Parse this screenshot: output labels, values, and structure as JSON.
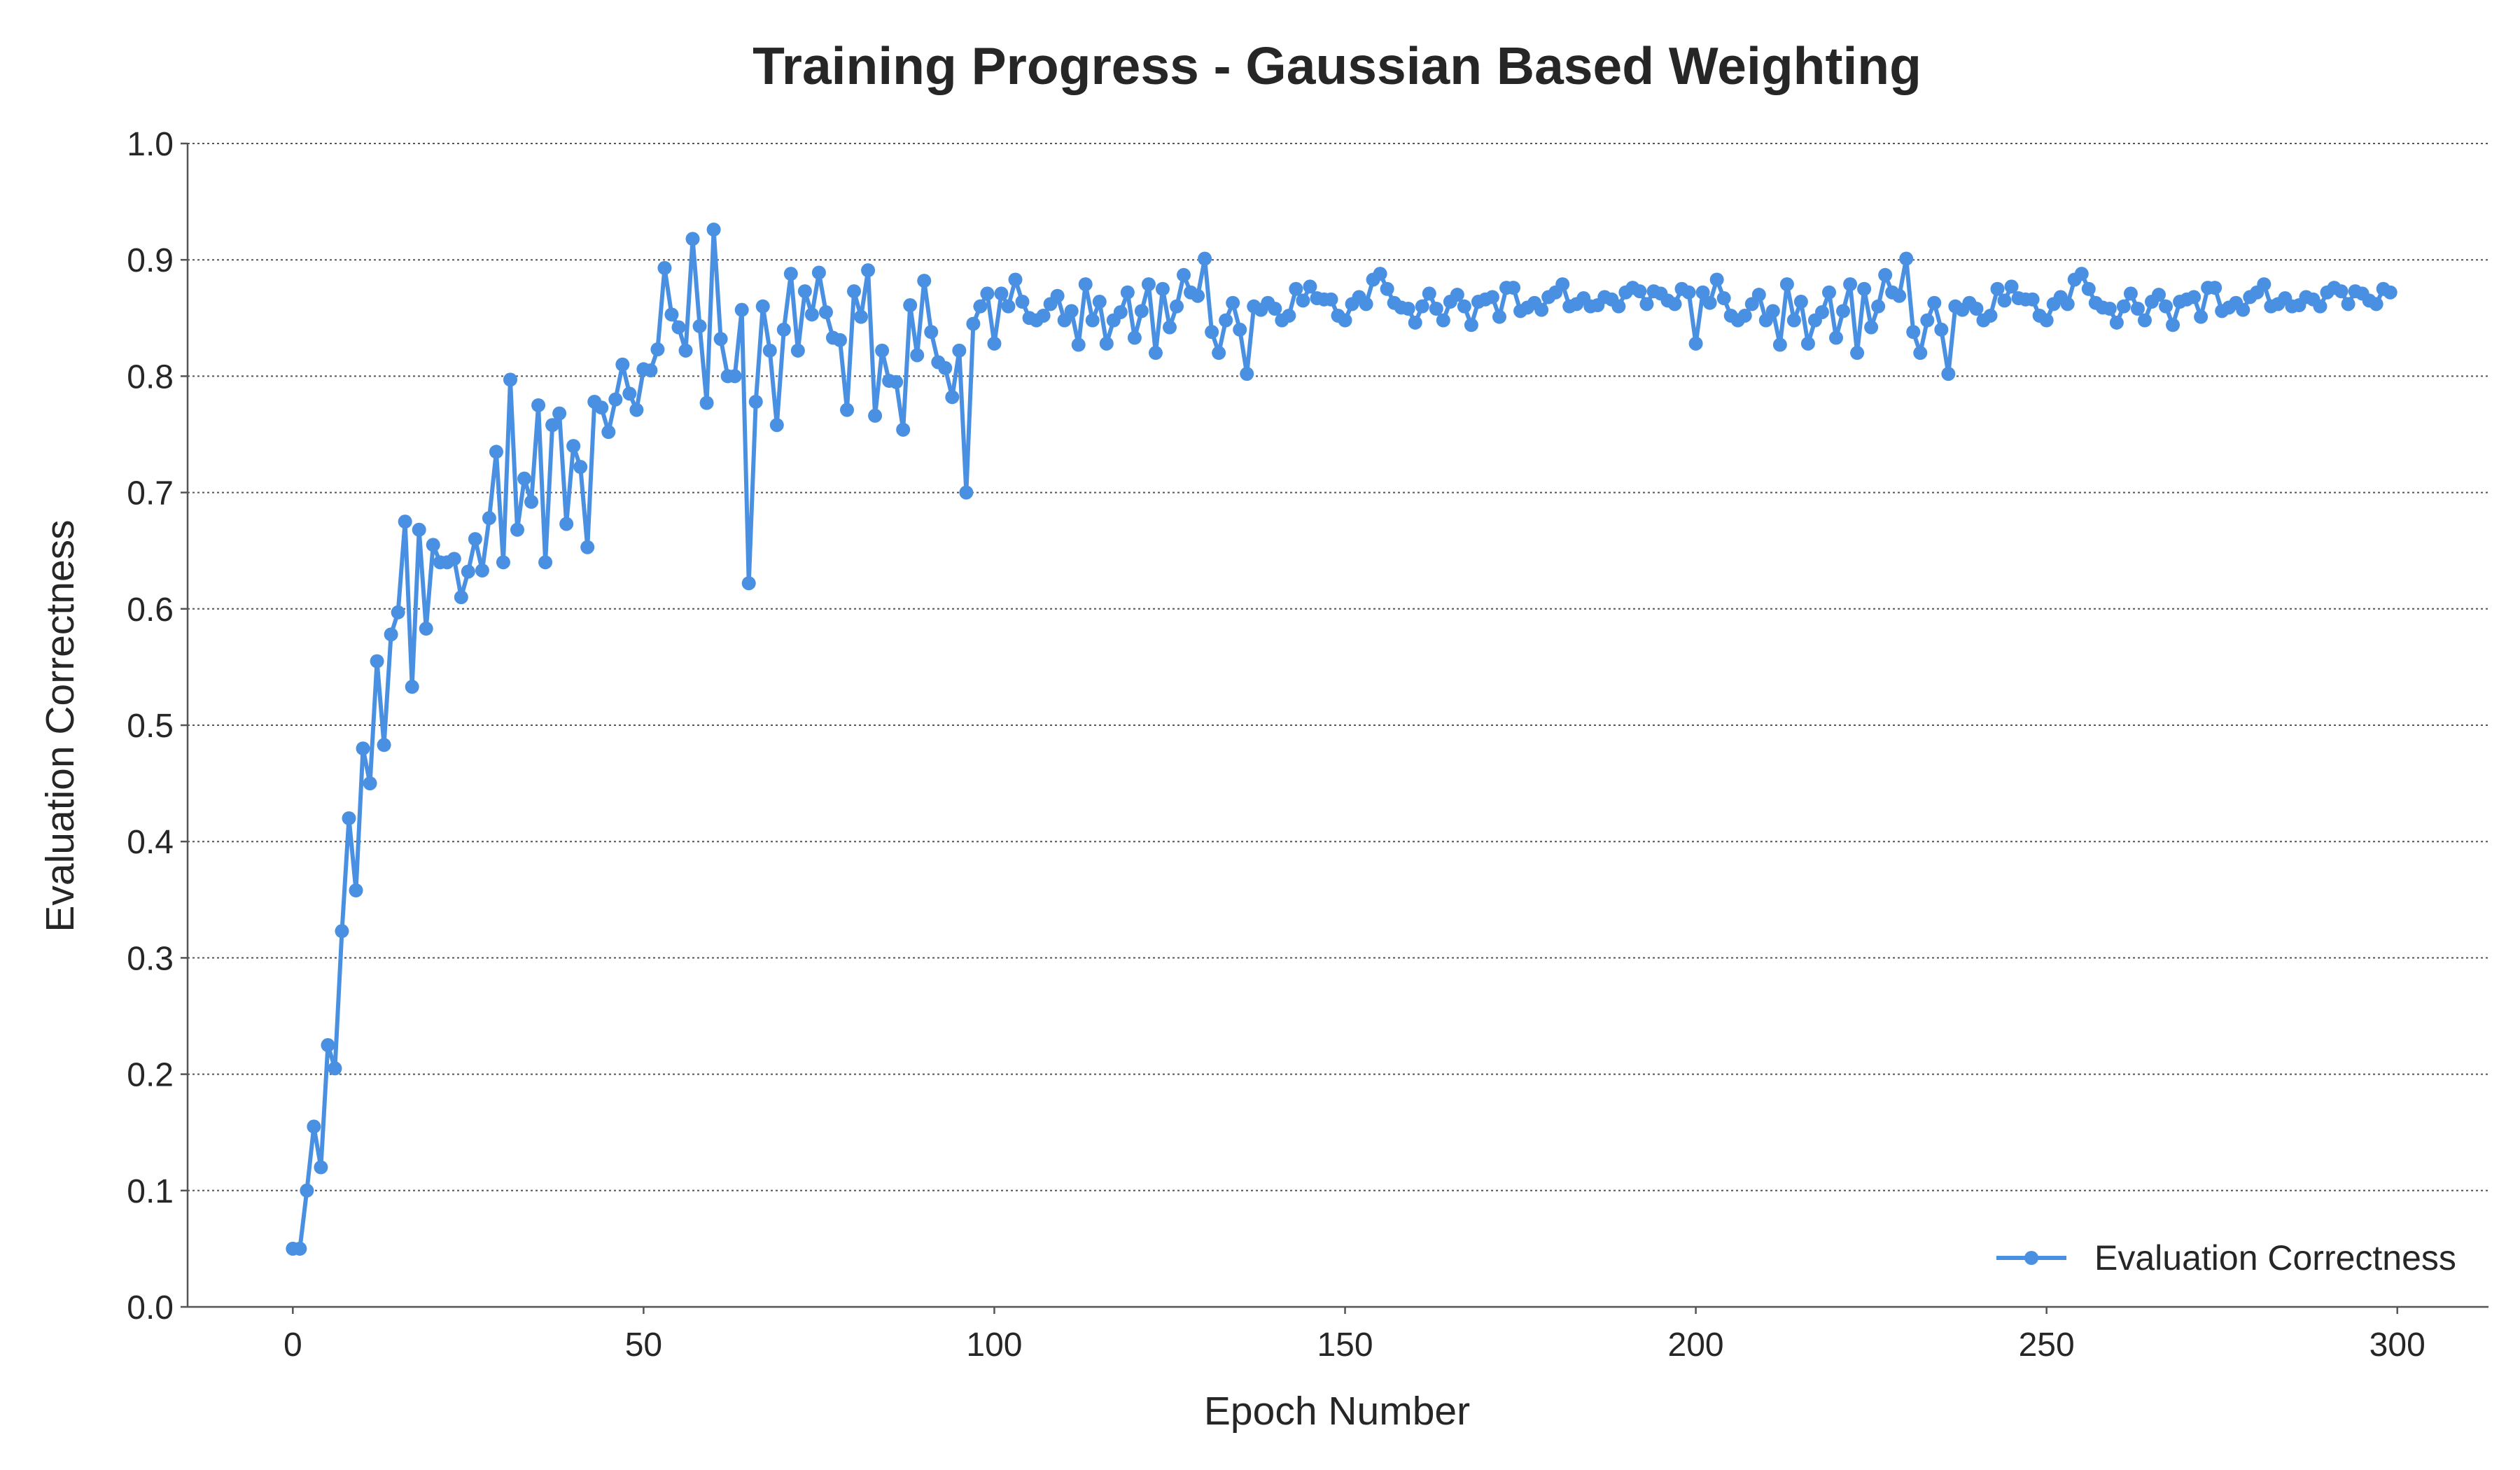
{
  "chart_data": {
    "type": "line",
    "title": "Training Progress - Gaussian Based Weighting",
    "xlabel": "Epoch Number",
    "ylabel": "Evaluation Correctness",
    "xlim": [
      -15,
      313
    ],
    "ylim": [
      0,
      1.0
    ],
    "xticks": [
      0,
      50,
      100,
      150,
      200,
      250,
      300
    ],
    "yticks": [
      0.0,
      0.1,
      0.2,
      0.3,
      0.4,
      0.5,
      0.6,
      0.7,
      0.8,
      0.9,
      1.0
    ],
    "xtick_labels": [
      "0",
      "50",
      "100",
      "150",
      "200",
      "250",
      "300"
    ],
    "ytick_labels": [
      "0.0",
      "0.1",
      "0.2",
      "0.3",
      "0.4",
      "0.5",
      "0.6",
      "0.7",
      "0.8",
      "0.9",
      "1.0"
    ],
    "grid": "horizontal-dotted",
    "legend_position": "lower-right",
    "series": [
      {
        "name": "Evaluation Correctness",
        "color": "#4a90e2",
        "marker": "circle",
        "x": [
          0,
          1,
          2,
          3,
          4,
          5,
          6,
          7,
          8,
          9,
          10,
          11,
          12,
          13,
          14,
          15,
          16,
          17,
          18,
          19,
          20,
          21,
          22,
          23,
          24,
          25,
          26,
          27,
          28,
          29,
          30,
          31,
          32,
          33,
          34,
          35,
          36,
          37,
          38,
          39,
          40,
          41,
          42,
          43,
          44,
          45,
          46,
          47,
          48,
          49,
          50,
          51,
          52,
          53,
          54,
          55,
          56,
          57,
          58,
          59,
          60,
          61,
          62,
          63,
          64,
          65,
          66,
          67,
          68,
          69,
          70,
          71,
          72,
          73,
          74,
          75,
          76,
          77,
          78,
          79,
          80,
          81,
          82,
          83,
          84,
          85,
          86,
          87,
          88,
          89,
          90,
          91,
          92,
          93,
          94,
          95,
          96,
          97,
          98,
          99,
          100,
          101,
          102,
          103,
          104,
          105,
          106,
          107,
          108,
          109,
          110,
          111,
          112,
          113,
          114,
          115,
          116,
          117,
          118,
          119,
          120,
          121,
          122,
          123,
          124,
          125,
          126,
          127,
          128,
          129,
          130,
          131,
          132,
          133,
          134,
          135,
          136,
          137,
          138,
          139,
          140,
          141,
          142,
          143,
          144,
          145,
          146,
          147,
          148,
          149,
          150,
          151,
          152,
          153,
          154,
          155,
          156,
          157,
          158,
          159,
          160,
          161,
          162,
          163,
          164,
          165,
          166,
          167,
          168,
          169,
          170,
          171,
          172,
          173,
          174,
          175,
          176,
          177,
          178,
          179,
          180,
          181,
          182,
          183,
          184,
          185,
          186,
          187,
          188,
          189,
          190,
          191,
          192,
          193,
          194,
          195,
          196,
          197,
          198,
          199,
          200,
          201,
          202,
          203,
          204,
          205,
          206,
          207,
          208,
          209,
          210,
          211,
          212,
          213,
          214,
          215,
          216,
          217,
          218,
          219,
          220,
          221,
          222,
          223,
          224,
          225,
          226,
          227,
          228,
          229,
          230,
          231,
          232,
          233,
          234,
          235,
          236,
          237,
          238,
          239,
          240,
          241,
          242,
          243,
          244,
          245,
          246,
          247,
          248,
          249,
          250,
          251,
          252,
          253,
          254,
          255,
          256,
          257,
          258,
          259,
          260,
          261,
          262,
          263,
          264,
          265,
          266,
          267,
          268,
          269,
          270,
          271,
          272,
          273,
          274,
          275,
          276,
          277,
          278,
          279,
          280,
          281,
          282,
          283,
          284,
          285,
          286,
          287,
          288,
          289,
          290,
          291,
          292,
          293,
          294,
          295,
          296,
          297,
          298,
          299
        ],
        "y": [
          0.05,
          0.05,
          0.1,
          0.155,
          0.12,
          0.225,
          0.205,
          0.323,
          0.42,
          0.358,
          0.48,
          0.45,
          0.555,
          0.483,
          0.578,
          0.597,
          0.675,
          0.533,
          0.668,
          0.583,
          0.655,
          0.64,
          0.64,
          0.643,
          0.61,
          0.632,
          0.66,
          0.633,
          0.678,
          0.735,
          0.64,
          0.797,
          0.668,
          0.712,
          0.692,
          0.775,
          0.64,
          0.758,
          0.768,
          0.673,
          0.74,
          0.722,
          0.653,
          0.778,
          0.773,
          0.752,
          0.78,
          0.81,
          0.785,
          0.771,
          0.806,
          0.805,
          0.823,
          0.893,
          0.853,
          0.842,
          0.822,
          0.918,
          0.843,
          0.777,
          0.926,
          0.832,
          0.8,
          0.8,
          0.857,
          0.622,
          0.778,
          0.86,
          0.822,
          0.758,
          0.84,
          0.888,
          0.822,
          0.873,
          0.853,
          0.889,
          0.855,
          0.833,
          0.831,
          0.771,
          0.873,
          0.851,
          0.891,
          0.766,
          0.822,
          0.796,
          0.795,
          0.754,
          0.861,
          0.818,
          0.882,
          0.838,
          0.812,
          0.807,
          0.782,
          0.822,
          0.7,
          0.845,
          0.86,
          0.871,
          0.828,
          0.871,
          0.86,
          0.883,
          0.864,
          0.85,
          0.848,
          0.852,
          0.862,
          0.869,
          0.848,
          0.856,
          0.827,
          0.879,
          0.848,
          0.864,
          0.828,
          0.848,
          0.855,
          0.872,
          0.833,
          0.856,
          0.879,
          0.82,
          0.875,
          0.842,
          0.86,
          0.887,
          0.872,
          0.869,
          0.901,
          0.838,
          0.82,
          0.848,
          0.863,
          0.84,
          0.802,
          0.86,
          0.857,
          0.863,
          0.858,
          0.848,
          0.852,
          0.875,
          0.865,
          0.877,
          0.867,
          0.866,
          0.866,
          0.852,
          0.848,
          0.862,
          0.868,
          0.862,
          0.883,
          0.888,
          0.875,
          0.863,
          0.859,
          0.858,
          0.846,
          0.86,
          0.871,
          0.858,
          0.848,
          0.864,
          0.87,
          0.86,
          0.844,
          0.864,
          0.866,
          0.868,
          0.851,
          0.876,
          0.876,
          0.856,
          0.859,
          0.863,
          0.857,
          0.868,
          0.872,
          0.879,
          0.86,
          0.862,
          0.867,
          0.86,
          0.861,
          0.868,
          0.866,
          0.86,
          0.872,
          0.876,
          0.873,
          0.862,
          0.873,
          0.871,
          0.865,
          0.862,
          0.875,
          0.872,
          0.828,
          0.872,
          0.863,
          0.883,
          0.867,
          0.852,
          0.848,
          0.852,
          0.862,
          0.87,
          0.848,
          0.856,
          0.827,
          0.879,
          0.848,
          0.864,
          0.828,
          0.848,
          0.855,
          0.872,
          0.833,
          0.856,
          0.879,
          0.82,
          0.875,
          0.842,
          0.86,
          0.887,
          0.872,
          0.869,
          0.901,
          0.838,
          0.82,
          0.848,
          0.863,
          0.84,
          0.802,
          0.86,
          0.857,
          0.863,
          0.858,
          0.848,
          0.852,
          0.875,
          0.865,
          0.877,
          0.867,
          0.866,
          0.866,
          0.852,
          0.848,
          0.862,
          0.868,
          0.862,
          0.883,
          0.888,
          0.875,
          0.863,
          0.859,
          0.858,
          0.846,
          0.86,
          0.871,
          0.858,
          0.848,
          0.864,
          0.87,
          0.86,
          0.844,
          0.864,
          0.866,
          0.868,
          0.851,
          0.876,
          0.876,
          0.856,
          0.859,
          0.863,
          0.857,
          0.868,
          0.872,
          0.879,
          0.86,
          0.862,
          0.867,
          0.86,
          0.861,
          0.868,
          0.866,
          0.86,
          0.872,
          0.876,
          0.873,
          0.862,
          0.873,
          0.871,
          0.865,
          0.862,
          0.875,
          0.872
        ]
      }
    ]
  }
}
